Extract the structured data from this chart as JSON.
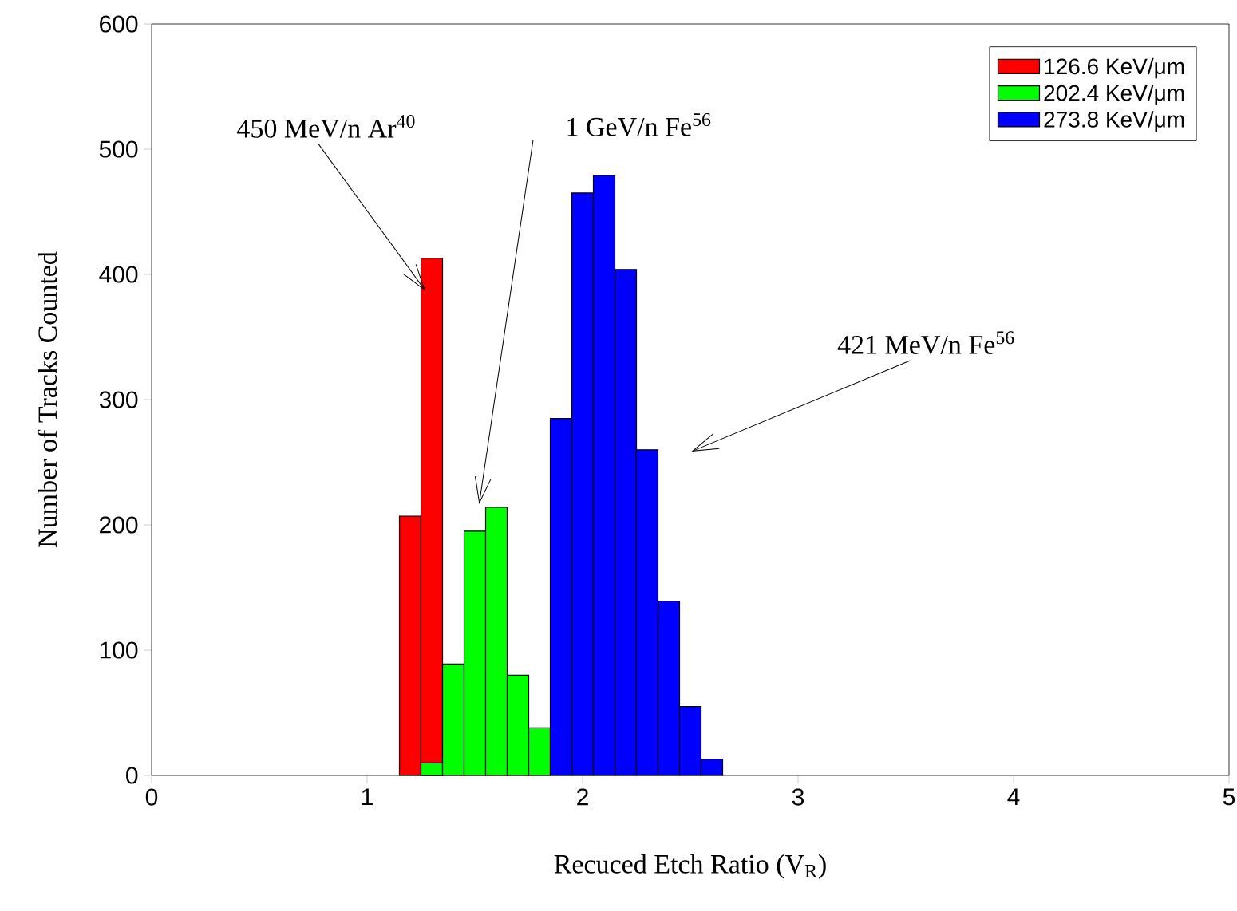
{
  "chart_data": {
    "type": "histogram",
    "xlabel": "Recuced Etch Ratio (V$_{R}$)",
    "ylabel": "Number of Tracks Counted",
    "xlim": [
      0,
      5
    ],
    "ylim": [
      0,
      600
    ],
    "xticks": [
      0,
      1,
      2,
      3,
      4,
      5
    ],
    "yticks": [
      0,
      100,
      200,
      300,
      400,
      500,
      600
    ],
    "grid": false,
    "legend": "top right",
    "bins": [
      1.15,
      1.25,
      1.35,
      1.45,
      1.55,
      1.65,
      1.75,
      1.85,
      1.95,
      2.05,
      2.15,
      2.25,
      2.35,
      2.45,
      2.55,
      2.65
    ],
    "series": [
      {
        "name": "126.6 KeV/μm",
        "color": "#ff0000",
        "values": [
          207,
          413,
          null,
          null,
          null,
          null,
          null,
          null,
          null,
          null,
          null,
          null,
          null,
          null,
          null
        ]
      },
      {
        "name": "202.4 KeV/μm",
        "color": "#00ff00",
        "values": [
          null,
          10,
          89,
          195,
          214,
          80,
          38,
          null,
          null,
          null,
          null,
          null,
          null,
          null,
          null
        ]
      },
      {
        "name": "273.8 KeV/μm",
        "color": "#0000ff",
        "values": [
          null,
          null,
          null,
          null,
          null,
          null,
          null,
          285,
          465,
          479,
          404,
          260,
          139,
          55,
          13
        ]
      }
    ],
    "annotations": [
      {
        "text": "450 MeV/n Ar$^{40}$",
        "x": 1.27,
        "y": 387
      },
      "1 GeV/n Fe$^{56}$",
      "421 MeV/n Fe$^{56}$"
    ]
  }
}
